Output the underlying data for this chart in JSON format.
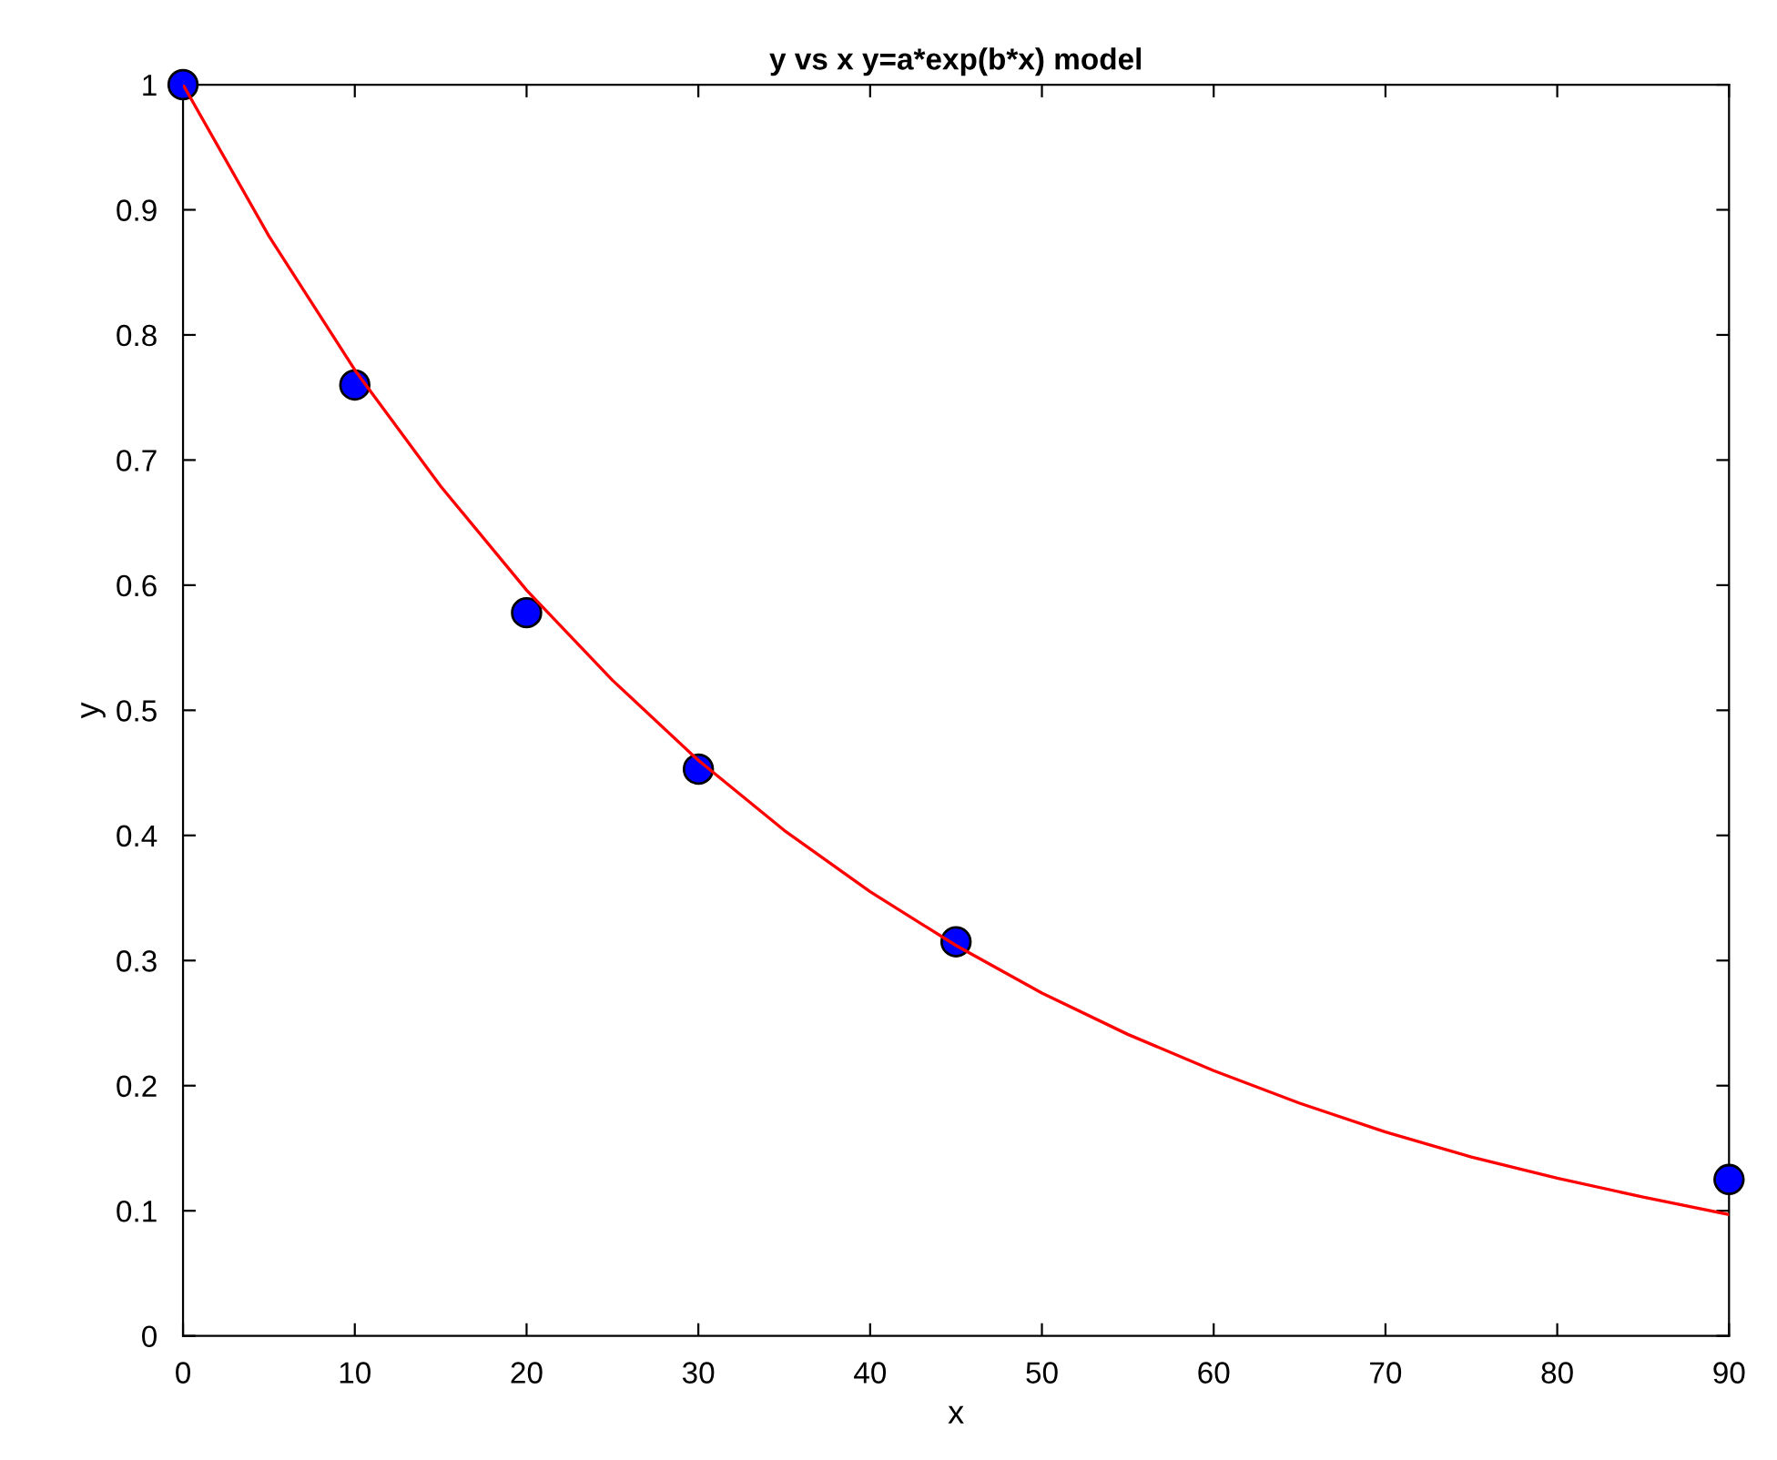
{
  "chart_data": {
    "type": "scatter",
    "title": "y vs x y=a*exp(b*x) model",
    "xlabel": "x",
    "ylabel": "y",
    "xlim": [
      0,
      90
    ],
    "ylim": [
      0,
      1
    ],
    "xticks": [
      0,
      10,
      20,
      30,
      40,
      50,
      60,
      70,
      80,
      90
    ],
    "yticks": [
      0,
      0.1,
      0.2,
      0.3,
      0.4,
      0.5,
      0.6,
      0.7,
      0.8,
      0.9,
      1
    ],
    "grid": false,
    "legend": false,
    "series": [
      {
        "color": "#0000ff",
        "marker": "circle",
        "x": [
          0,
          10,
          20,
          30,
          45,
          90
        ],
        "values": [
          1.0,
          0.76,
          0.578,
          0.453,
          0.315,
          0.125
        ]
      },
      {
        "type": "line",
        "color": "#ff0000",
        "marker": "none",
        "line_style": "solid",
        "x": [
          0,
          5,
          10,
          15,
          20,
          25,
          30,
          35,
          40,
          45,
          50,
          55,
          60,
          65,
          70,
          75,
          80,
          85,
          90
        ],
        "values": [
          1.0,
          0.879,
          0.772,
          0.679,
          0.596,
          0.524,
          0.46,
          0.404,
          0.355,
          0.312,
          0.274,
          0.241,
          0.212,
          0.186,
          0.163,
          0.143,
          0.126,
          0.111,
          0.097
        ]
      }
    ]
  }
}
